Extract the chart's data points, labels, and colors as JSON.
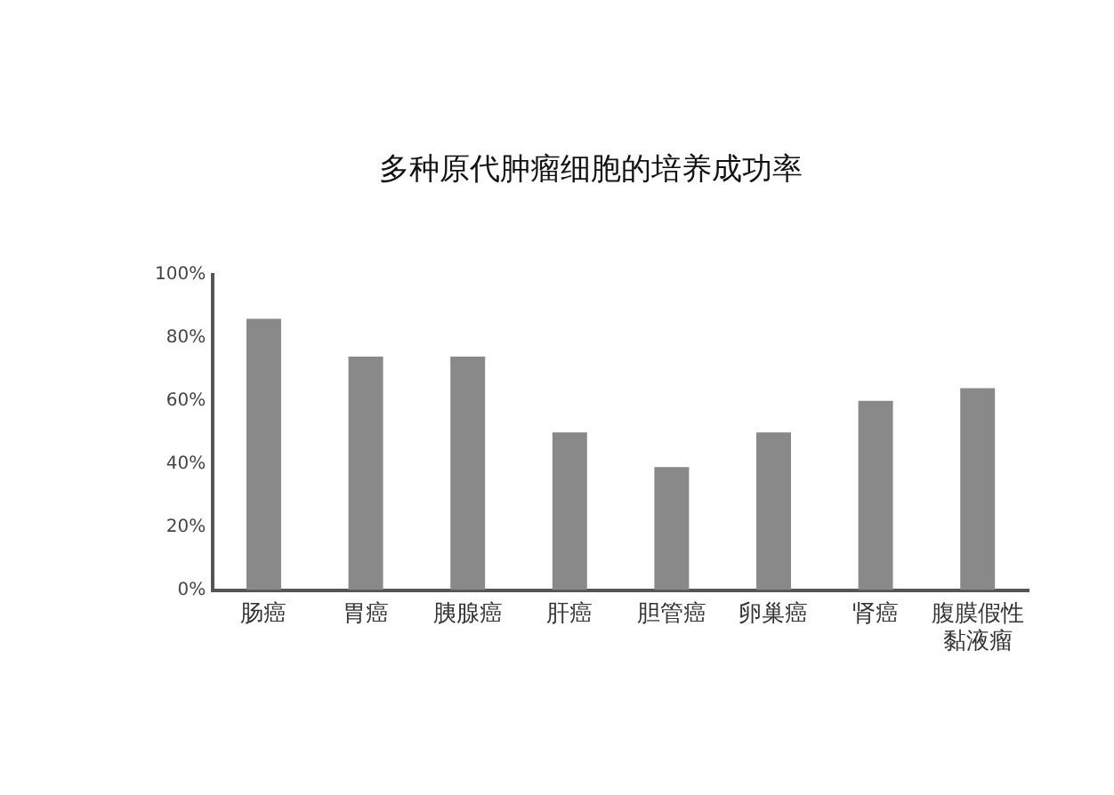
{
  "chart_data": {
    "type": "bar",
    "title": "多种原代肿瘤细胞的培养成功率",
    "categories": [
      "肠癌",
      "胃癌",
      "胰腺癌",
      "肝癌",
      "胆管癌",
      "卵巢癌",
      "肾癌",
      "腹膜假性黏液瘤"
    ],
    "values": [
      86,
      74,
      74,
      50,
      39,
      50,
      60,
      64
    ],
    "color": "#898989",
    "ylim": [
      0,
      100
    ],
    "yticks": [
      {
        "value": 0,
        "label": "0%"
      },
      {
        "value": 20,
        "label": "20%"
      },
      {
        "value": 40,
        "label": "40%"
      },
      {
        "value": 60,
        "label": "60%"
      },
      {
        "value": 80,
        "label": "80%"
      },
      {
        "value": 100,
        "label": "100%"
      }
    ],
    "grid": false,
    "legend": false
  }
}
